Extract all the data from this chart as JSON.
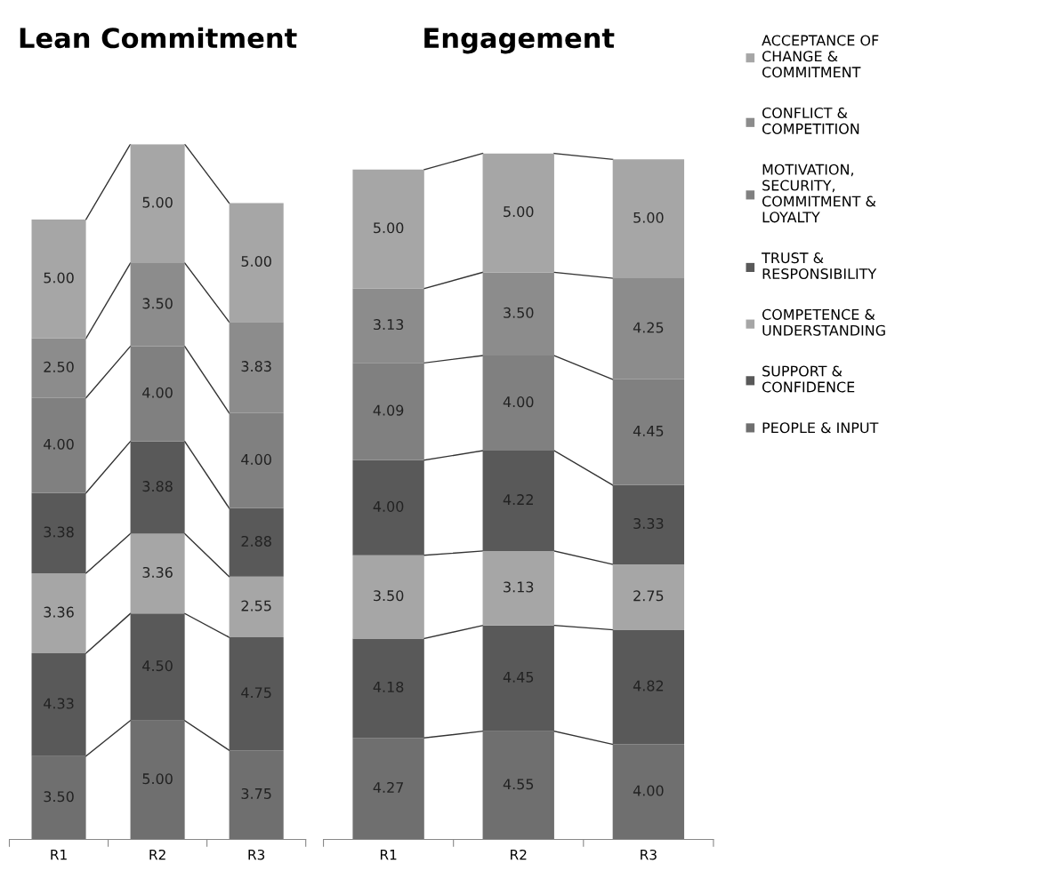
{
  "chart_data": [
    {
      "type": "bar",
      "title": "Lean Commitment",
      "stacked": true,
      "tick_labels": "x",
      "categories": [
        "R1",
        "R2",
        "R3"
      ],
      "series": [
        {
          "color": "#6f6f6f",
          "values": [
            3.5,
            5.0,
            3.75
          ],
          "value_labels": [
            "3.50",
            "5.00",
            "3.75"
          ]
        },
        {
          "color": "#595959",
          "values": [
            4.33,
            4.5,
            4.75
          ],
          "value_labels": [
            "4.33",
            "4.50",
            "4.75"
          ]
        },
        {
          "color": "#a6a6a6",
          "values": [
            3.36,
            3.36,
            2.55
          ],
          "value_labels": [
            "3.36",
            "3.36",
            "2.55"
          ]
        },
        {
          "color": "#595959",
          "values": [
            3.38,
            3.88,
            2.88
          ],
          "value_labels": [
            "3.38",
            "3.88",
            "2.88"
          ]
        },
        {
          "color": "#808080",
          "values": [
            4.0,
            4.0,
            4.0
          ],
          "value_labels": [
            "4.00",
            "4.00",
            "4.00"
          ]
        },
        {
          "color": "#8c8c8c",
          "values": [
            2.5,
            3.5,
            3.83
          ],
          "value_labels": [
            "2.50",
            "3.50",
            "3.83"
          ]
        },
        {
          "color": "#a6a6a6",
          "values": [
            5.0,
            5.0,
            5.0
          ],
          "value_labels": [
            "5.00",
            "5.00",
            "5.00"
          ]
        }
      ]
    },
    {
      "type": "bar",
      "title": "Engagement",
      "stacked": true,
      "tick_labels": "x",
      "legend": "right",
      "categories": [
        "R1",
        "R2",
        "R3"
      ],
      "series": [
        {
          "name": "PEOPLE & INPUT",
          "color": "#6f6f6f",
          "values": [
            4.27,
            4.55,
            4.0
          ],
          "value_labels": [
            "4.27",
            "4.55",
            "4.00"
          ]
        },
        {
          "name": "SUPPORT &\nCONFIDENCE",
          "color": "#595959",
          "values": [
            4.18,
            4.45,
            4.82
          ],
          "value_labels": [
            "4.18",
            "4.45",
            "4.82"
          ]
        },
        {
          "name": "COMPETENCE &\nUNDERSTANDING",
          "color": "#a6a6a6",
          "values": [
            3.5,
            3.13,
            2.75
          ],
          "value_labels": [
            "3.50",
            "3.13",
            "2.75"
          ]
        },
        {
          "name": "TRUST &\nRESPONSIBILITY",
          "color": "#595959",
          "values": [
            4.0,
            4.22,
            3.33
          ],
          "value_labels": [
            "4.00",
            "4.22",
            "3.33"
          ]
        },
        {
          "name": "MOTIVATION,\nSECURITY,\nCOMMITMENT &\nLOYALTY",
          "color": "#808080",
          "values": [
            4.09,
            4.0,
            4.45
          ],
          "value_labels": [
            "4.09",
            "4.00",
            "4.45"
          ]
        },
        {
          "name": "CONFLICT &\nCOMPETITION",
          "color": "#8c8c8c",
          "values": [
            3.13,
            3.5,
            4.25
          ],
          "value_labels": [
            "3.13",
            "3.50",
            "4.25"
          ]
        },
        {
          "name": "ACCEPTANCE OF\nCHANGE &\nCOMMITMENT",
          "color": "#a6a6a6",
          "values": [
            5.0,
            5.0,
            5.0
          ],
          "value_labels": [
            "5.00",
            "5.00",
            "5.00"
          ]
        }
      ]
    }
  ]
}
